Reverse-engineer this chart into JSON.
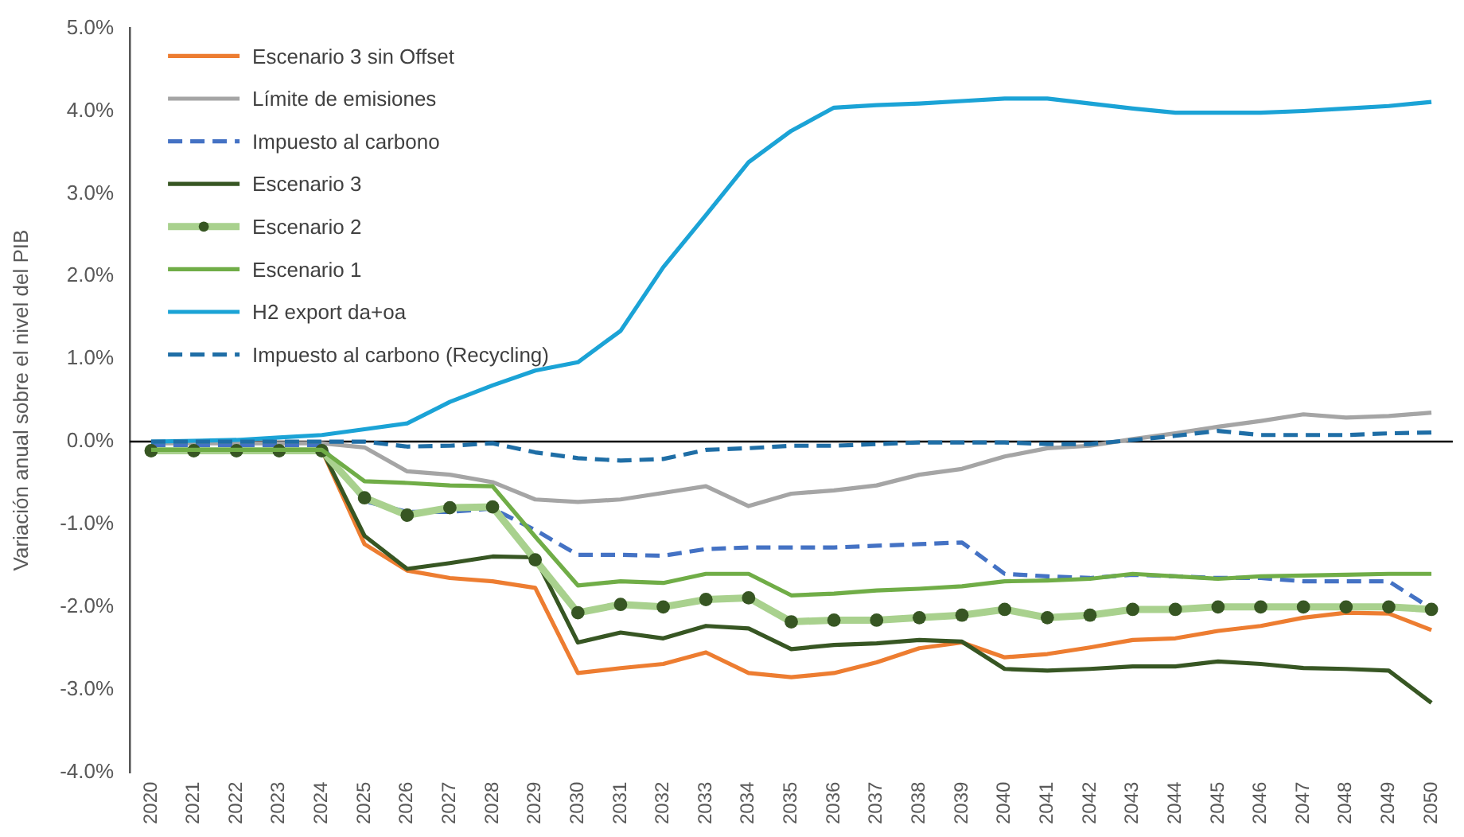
{
  "chart_data": {
    "type": "line",
    "ylabel": "Variación anual sobre el nivel del PIB",
    "categories": [
      "2020",
      "2021",
      "2022",
      "2023",
      "2024",
      "2025",
      "2026",
      "2027",
      "2028",
      "2029",
      "2030",
      "2031",
      "2032",
      "2033",
      "2034",
      "2035",
      "2036",
      "2037",
      "2038",
      "2039",
      "2040",
      "2041",
      "2042",
      "2043",
      "2044",
      "2045",
      "2046",
      "2047",
      "2048",
      "2049",
      "2050"
    ],
    "series": [
      {
        "name": "Escenario 3 sin Offset",
        "color": "#ed7d31",
        "values": [
          null,
          null,
          null,
          -0.1,
          -0.1,
          -1.24,
          -1.56,
          -1.65,
          -1.69,
          -1.77,
          -2.8,
          -2.74,
          -2.69,
          -2.55,
          -2.8,
          -2.85,
          -2.8,
          -2.67,
          -2.5,
          -2.43,
          -2.61,
          -2.57,
          -2.49,
          -2.4,
          -2.38,
          -2.29,
          -2.23,
          -2.13,
          -2.07,
          -2.08,
          -2.28
        ]
      },
      {
        "name": "Límite de emisiones",
        "color": "#a5a5a5",
        "values": [
          -0.02,
          -0.02,
          -0.02,
          -0.02,
          -0.02,
          -0.07,
          -0.36,
          -0.4,
          -0.49,
          -0.7,
          -0.73,
          -0.7,
          -0.62,
          -0.54,
          -0.78,
          -0.63,
          -0.59,
          -0.53,
          -0.4,
          -0.33,
          -0.18,
          -0.08,
          -0.05,
          0.03,
          0.1,
          0.18,
          0.25,
          0.33,
          0.29,
          0.31,
          0.35
        ]
      },
      {
        "name": "Impuesto al carbono",
        "color": "#4472c4",
        "line_style": "dashed",
        "values": [
          -0.05,
          -0.05,
          -0.05,
          -0.05,
          -0.05,
          -0.72,
          -0.85,
          -0.85,
          -0.81,
          -1.07,
          -1.37,
          -1.37,
          -1.38,
          -1.3,
          -1.28,
          -1.28,
          -1.28,
          -1.26,
          -1.24,
          -1.22,
          -1.6,
          -1.63,
          -1.65,
          -1.61,
          -1.63,
          -1.65,
          -1.65,
          -1.69,
          -1.69,
          -1.69,
          -2.02
        ]
      },
      {
        "name": "Escenario 3",
        "color": "#375623",
        "values": [
          -0.1,
          -0.1,
          -0.1,
          -0.1,
          -0.1,
          -1.14,
          -1.54,
          -1.47,
          -1.39,
          -1.4,
          -2.43,
          -2.31,
          -2.38,
          -2.23,
          -2.26,
          -2.51,
          -2.46,
          -2.44,
          -2.4,
          -2.42,
          -2.75,
          -2.77,
          -2.75,
          -2.72,
          -2.72,
          -2.66,
          -2.69,
          -2.74,
          -2.75,
          -2.77,
          -3.16
        ]
      },
      {
        "name": "Escenario 2",
        "color": "#a9d18e",
        "marker": "circle",
        "colors": [
          "#375623",
          "#375623",
          "#375623",
          "#375623",
          "#375623",
          "#375623",
          "#375623",
          "#375623",
          "#375623",
          "#375623",
          "#375623",
          "#375623",
          "#375623",
          "#375623",
          "#375623",
          "#375623",
          "#375623",
          "#375623",
          "#375623",
          "#375623",
          "#375623",
          "#375623",
          "#375623",
          "#375623",
          "#375623",
          "#375623",
          "#375623",
          "#375623",
          "#375623",
          "#375623",
          "#375623"
        ],
        "values": [
          -0.11,
          -0.11,
          -0.11,
          -0.11,
          -0.11,
          -0.68,
          -0.89,
          -0.8,
          -0.79,
          -1.43,
          -2.07,
          -1.97,
          -2.0,
          -1.91,
          -1.89,
          -2.18,
          -2.16,
          -2.16,
          -2.13,
          -2.1,
          -2.03,
          -2.13,
          -2.1,
          -2.03,
          -2.03,
          -2.0,
          -2.0,
          -2.0,
          -2.0,
          -2.0,
          -2.03
        ]
      },
      {
        "name": "Escenario 1",
        "color": "#70ad47",
        "values": [
          -0.1,
          -0.1,
          -0.1,
          -0.1,
          -0.1,
          -0.48,
          -0.5,
          -0.53,
          -0.54,
          -1.15,
          -1.74,
          -1.69,
          -1.71,
          -1.6,
          -1.6,
          -1.86,
          -1.84,
          -1.8,
          -1.78,
          -1.75,
          -1.69,
          -1.68,
          -1.66,
          -1.6,
          -1.63,
          -1.66,
          -1.63,
          -1.62,
          -1.61,
          -1.6,
          -1.6
        ]
      },
      {
        "name": "H2 export da+oa",
        "color": "#1ba3d6",
        "values": [
          0.0,
          0.01,
          0.02,
          0.05,
          0.08,
          0.15,
          0.22,
          0.48,
          0.68,
          0.86,
          0.96,
          1.34,
          2.11,
          2.74,
          3.38,
          3.76,
          4.04,
          4.07,
          4.09,
          4.12,
          4.15,
          4.15,
          4.09,
          4.03,
          3.98,
          3.98,
          3.98,
          4.0,
          4.03,
          4.06,
          4.11
        ]
      },
      {
        "name": "Impuesto al carbono (Recycling)",
        "color": "#1f6ea6",
        "line_style": "dashed",
        "values": [
          0.0,
          0.0,
          0.0,
          0.0,
          0.0,
          0.0,
          -0.06,
          -0.05,
          -0.02,
          -0.13,
          -0.2,
          -0.23,
          -0.21,
          -0.1,
          -0.08,
          -0.05,
          -0.05,
          -0.03,
          -0.01,
          -0.01,
          -0.01,
          -0.03,
          -0.03,
          0.02,
          0.07,
          0.13,
          0.08,
          0.08,
          0.08,
          0.1,
          0.11
        ]
      }
    ],
    "ylim": [
      -4,
      5
    ],
    "yticks": [
      {
        "value": -4,
        "label": "-4.0%"
      },
      {
        "value": -3,
        "label": "-3.0%"
      },
      {
        "value": -2,
        "label": "-2.0%"
      },
      {
        "value": -1,
        "label": "-1.0%"
      },
      {
        "value": 0,
        "label": "0.0%"
      },
      {
        "value": 1,
        "label": "1.0%"
      },
      {
        "value": 2,
        "label": "2.0%"
      },
      {
        "value": 3,
        "label": "3.0%"
      },
      {
        "value": 4,
        "label": "4.0%"
      },
      {
        "value": 5,
        "label": "5.0%"
      }
    ],
    "ref_lines": [
      {
        "axis": "y",
        "value": 0,
        "color": "#000000"
      }
    ],
    "grid": false,
    "legend": "top left",
    "marker": "none",
    "line_style": "solid"
  }
}
